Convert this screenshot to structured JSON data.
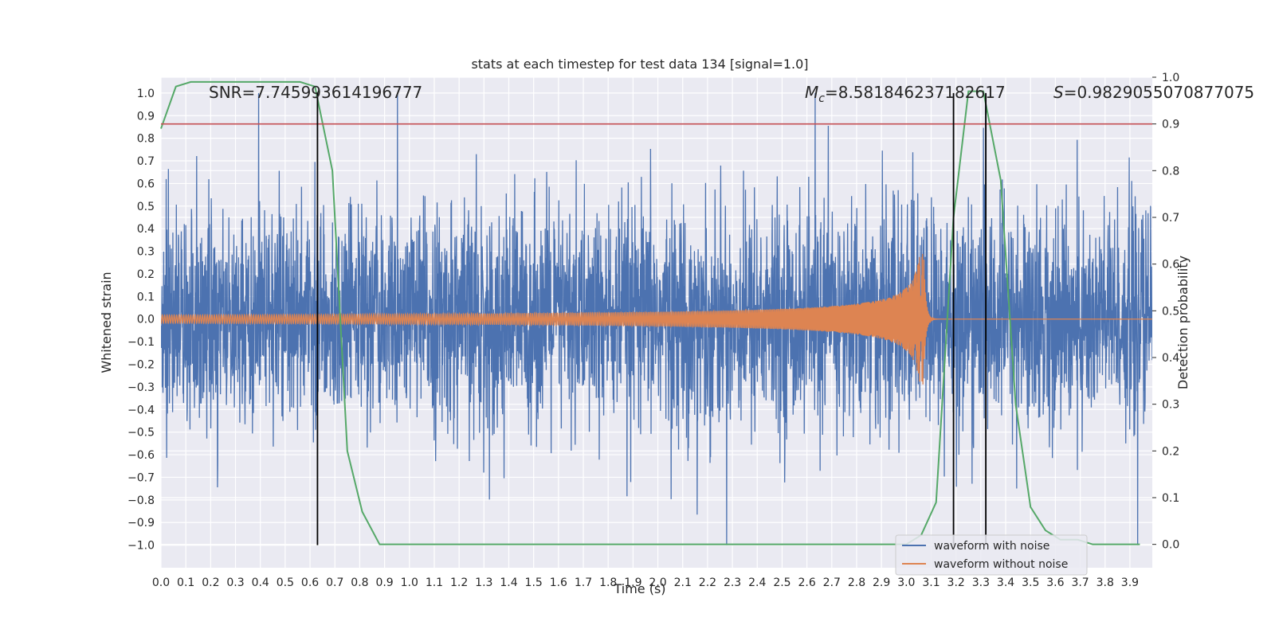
{
  "chart_data": {
    "type": "line",
    "title": "stats at each timestep for test data 134 [signal=1.0]",
    "xlabel": "Time (s)",
    "ylabel_left": "Whitened strain",
    "ylabel_right": "Detection probability",
    "xlim": [
      0.0,
      3.99
    ],
    "ylim_left": [
      -1.1,
      1.07
    ],
    "ylim_right": [
      -0.05,
      1.0
    ],
    "x_ticks": [
      "0.0",
      "0.1",
      "0.2",
      "0.3",
      "0.4",
      "0.5",
      "0.6",
      "0.7",
      "0.8",
      "0.9",
      "1.0",
      "1.1",
      "1.2",
      "1.3",
      "1.4",
      "1.5",
      "1.6",
      "1.7",
      "1.8",
      "1.9",
      "2.0",
      "2.1",
      "2.2",
      "2.3",
      "2.4",
      "2.5",
      "2.6",
      "2.7",
      "2.8",
      "2.9",
      "3.0",
      "3.1",
      "3.2",
      "3.3",
      "3.4",
      "3.5",
      "3.6",
      "3.7",
      "3.8",
      "3.9"
    ],
    "y_ticks_left": [
      "1.0",
      "0.9",
      "0.8",
      "0.7",
      "0.6",
      "0.5",
      "0.4",
      "0.3",
      "0.2",
      "0.1",
      "0.0",
      "−0.1",
      "−0.2",
      "−0.3",
      "−0.4",
      "−0.5",
      "−0.6",
      "−0.7",
      "−0.8",
      "−0.9",
      "−1.0"
    ],
    "y_ticks_right": [
      "1.0",
      "0.9",
      "0.8",
      "0.7",
      "0.6",
      "0.5",
      "0.4",
      "0.3",
      "0.2",
      "0.1",
      "0.0"
    ],
    "annotations": {
      "snr": "SNR=7.745993614196777",
      "mc_symbol": "M",
      "mc_sub": "c",
      "mc_value": "=8.581846237182617",
      "s_symbol": "S",
      "s_value": "=0.9829055070877075"
    },
    "legend": [
      "waveform with noise",
      "waveform without noise"
    ],
    "series": [
      {
        "name": "waveform with noise",
        "color": "#4c72b0",
        "description": "noisy whitened strain, amplitude roughly within [-1.0, 1.0]"
      },
      {
        "name": "waveform without noise",
        "color": "#dd8452",
        "description": "chirp signal, amplitude growing to ~0.29 at t=3.07 s then ringdown to 0"
      },
      {
        "name": "detection probability",
        "color": "#55a868",
        "axis": "right",
        "x": [
          0.0,
          0.06,
          0.12,
          0.19,
          0.25,
          0.31,
          0.38,
          0.44,
          0.5,
          0.56,
          0.62,
          0.69,
          0.75,
          0.81,
          0.88,
          0.94,
          1.0,
          1.5,
          2.0,
          2.5,
          2.9,
          3.0,
          3.06,
          3.12,
          3.19,
          3.25,
          3.31,
          3.38,
          3.44,
          3.5,
          3.56,
          3.62,
          3.69,
          3.75,
          3.81,
          3.88,
          3.94
        ],
        "values": [
          0.89,
          0.98,
          0.99,
          0.99,
          0.99,
          0.99,
          0.99,
          0.99,
          0.99,
          0.99,
          0.98,
          0.8,
          0.2,
          0.07,
          0.0,
          0.0,
          0.0,
          0.0,
          0.0,
          0.0,
          0.0,
          0.0,
          0.02,
          0.09,
          0.7,
          0.97,
          0.97,
          0.78,
          0.3,
          0.08,
          0.03,
          0.01,
          0.01,
          0.0,
          0.0,
          0.0,
          0.0
        ]
      }
    ],
    "threshold": {
      "axis": "right",
      "value": 0.9,
      "color": "#c44e52"
    },
    "vlines": [
      0.63,
      3.19,
      3.32
    ],
    "vline_range_left": [
      -1.0,
      1.0
    ]
  }
}
